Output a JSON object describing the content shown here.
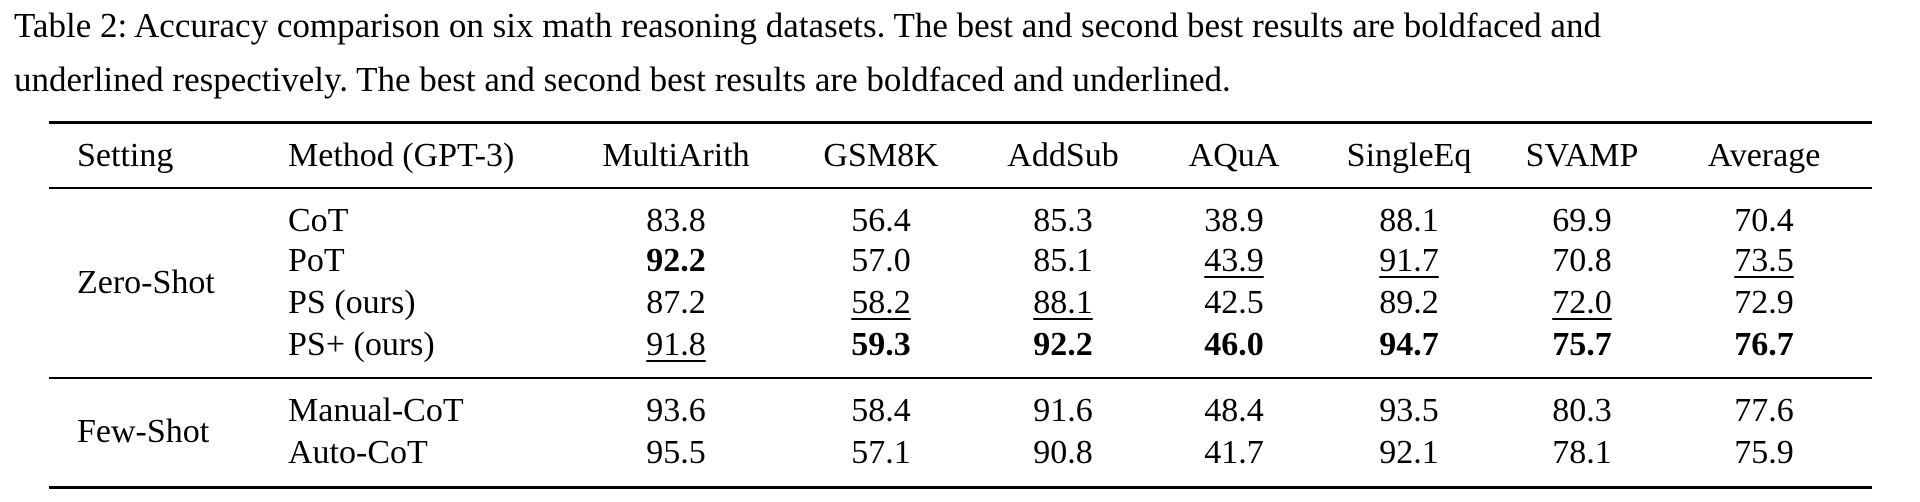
{
  "caption": {
    "lines": [
      "Table 2: Accuracy comparison on six math reasoning datasets. The best and second best results are boldfaced and",
      "underlined respectively. The best and second best results are boldfaced and underlined."
    ]
  },
  "table": {
    "columns": [
      "Setting",
      "Method (GPT-3)",
      "MultiArith",
      "GSM8K",
      "AddSub",
      "AQuA",
      "SingleEq",
      "SVAMP",
      "Average"
    ],
    "groups": [
      {
        "setting": "Zero-Shot",
        "rows": [
          {
            "method": "CoT",
            "cells": [
              "83.8",
              "56.4",
              "85.3",
              "38.9",
              "88.1",
              "69.9",
              "70.4"
            ],
            "bold": [],
            "underline": []
          },
          {
            "method": "PoT",
            "cells": [
              "92.2",
              "57.0",
              "85.1",
              "43.9",
              "91.7",
              "70.8",
              "73.5"
            ],
            "bold": [
              0
            ],
            "underline": [
              3,
              4,
              6
            ]
          },
          {
            "method": "PS (ours)",
            "cells": [
              "87.2",
              "58.2",
              "88.1",
              "42.5",
              "89.2",
              "72.0",
              "72.9"
            ],
            "bold": [],
            "underline": [
              1,
              2,
              5
            ]
          },
          {
            "method": "PS+ (ours)",
            "cells": [
              "91.8",
              "59.3",
              "92.2",
              "46.0",
              "94.7",
              "75.7",
              "76.7"
            ],
            "bold": [
              1,
              2,
              3,
              4,
              5,
              6
            ],
            "underline": [
              0
            ]
          }
        ]
      },
      {
        "setting": "Few-Shot",
        "rows": [
          {
            "method": "Manual-CoT",
            "cells": [
              "93.6",
              "58.4",
              "91.6",
              "48.4",
              "93.5",
              "80.3",
              "77.6"
            ],
            "bold": [],
            "underline": []
          },
          {
            "method": "Auto-CoT",
            "cells": [
              "95.5",
              "57.1",
              "90.8",
              "41.7",
              "92.1",
              "78.1",
              "75.9"
            ],
            "bold": [],
            "underline": []
          }
        ]
      }
    ]
  }
}
